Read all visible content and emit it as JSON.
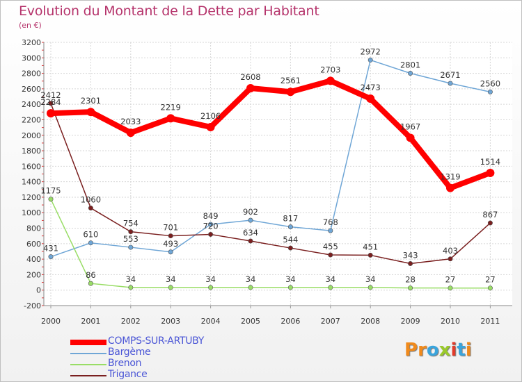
{
  "title": "Evolution du Montant de la Dette par Habitant",
  "subtitle": "(en €)",
  "logo": {
    "text": "Proxiti",
    "colors": [
      "#f08a1c",
      "#f08a1c",
      "#3aa4dc",
      "#9ac92a",
      "#e23b2b",
      "#3aa4dc",
      "#f08a1c"
    ]
  },
  "chart_data": {
    "type": "line",
    "x": [
      "2000",
      "2001",
      "2002",
      "2003",
      "2004",
      "2005",
      "2006",
      "2007",
      "2008",
      "2009",
      "2010",
      "2011"
    ],
    "ylim": [
      -200,
      3200
    ],
    "yticks": [
      "-200",
      "0",
      "200",
      "400",
      "600",
      "800",
      "1000",
      "1200",
      "1400",
      "1600",
      "1800",
      "2000",
      "2200",
      "2400",
      "2600",
      "2800",
      "3000",
      "3200"
    ],
    "grid": true,
    "legend_position": "bottom-left",
    "series": [
      {
        "name": "COMPS-SUR-ARTUBY",
        "color": "#ff0000",
        "values": [
          2284,
          2301,
          2033,
          2219,
          2106,
          2608,
          2561,
          2703,
          2473,
          1967,
          1319,
          1514
        ],
        "labels": [
          "2284",
          "2301",
          "2033",
          "2219",
          "2106",
          "2608",
          "2561",
          "2703",
          "2473",
          "1967",
          "1319",
          "1514"
        ]
      },
      {
        "name": "Bargème",
        "color": "#6fa6d6",
        "values": [
          431,
          610,
          553,
          493,
          849,
          902,
          817,
          768,
          2972,
          2801,
          2671,
          2560
        ],
        "labels": [
          "431",
          "610",
          "553",
          "493",
          "849",
          "902",
          "817",
          "768",
          "2972",
          "2801",
          "2671",
          "2560"
        ]
      },
      {
        "name": "Brenon",
        "color": "#99dd66",
        "values": [
          1175,
          86,
          34,
          34,
          34,
          34,
          34,
          34,
          34,
          28,
          27,
          27
        ],
        "labels": [
          "1175",
          "86",
          "34",
          "34",
          "34",
          "34",
          "34",
          "34",
          "34",
          "28",
          "27",
          "27"
        ]
      },
      {
        "name": "Trigance",
        "color": "#7a1f1f",
        "values": [
          2412,
          1060,
          754,
          701,
          720,
          634,
          544,
          455,
          451,
          343,
          403,
          867
        ],
        "labels": [
          "2412",
          "1060",
          "754",
          "701",
          "720",
          "634",
          "544",
          "455",
          "451",
          "343",
          "403",
          "867"
        ]
      }
    ]
  }
}
